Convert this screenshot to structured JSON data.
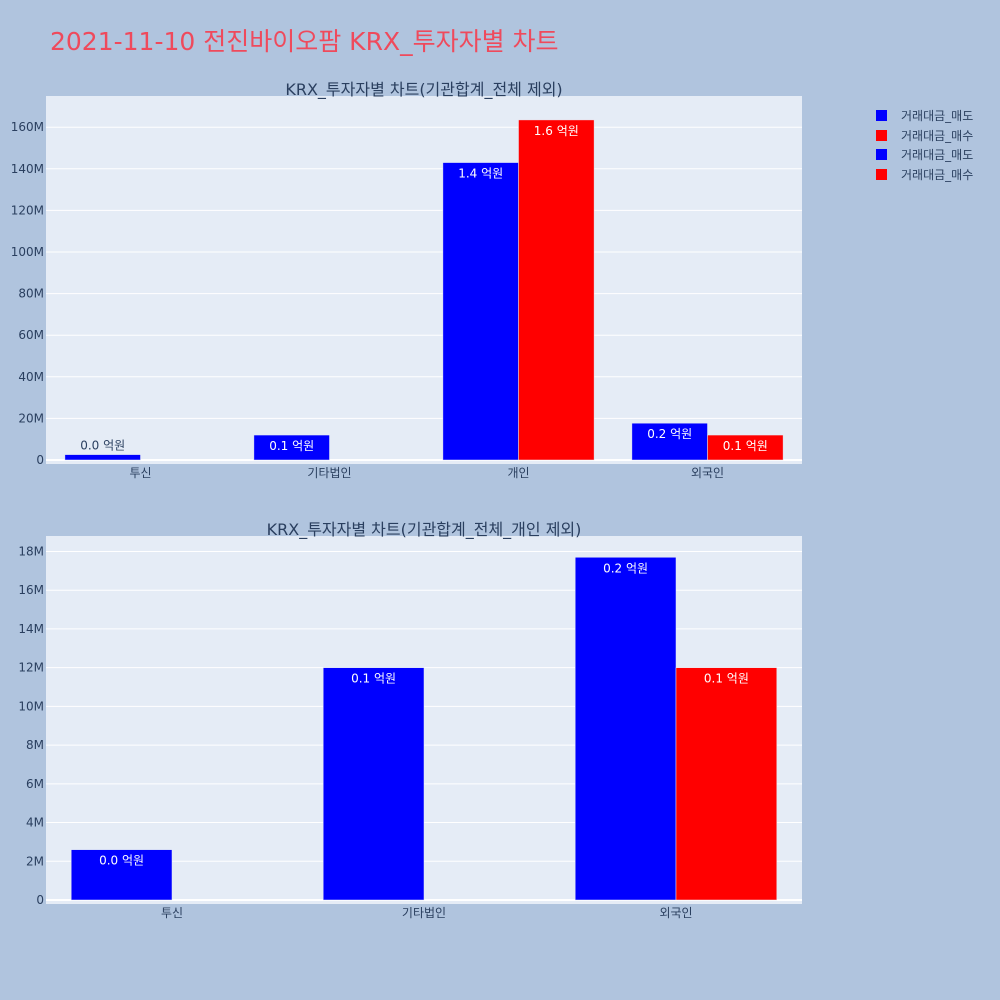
{
  "page_title": "2021-11-10 전진바이오팜 KRX_투자자별 차트",
  "colors": {
    "background": "#b0c4de",
    "plot_bg": "#e5ecf6",
    "grid": "#ffffff",
    "sell": "#0000ff",
    "buy": "#ff0000",
    "title": "#ef4a5c",
    "text": "#2a3f5f"
  },
  "legend": {
    "placement": "top-right",
    "items": [
      {
        "label": "거래대금_매도",
        "color": "#0000ff"
      },
      {
        "label": "거래대금_매수",
        "color": "#ff0000"
      },
      {
        "label": "거래대금_매도",
        "color": "#0000ff"
      },
      {
        "label": "거래대금_매수",
        "color": "#ff0000"
      }
    ]
  },
  "chart_data": [
    {
      "type": "bar",
      "title": "KRX_투자자별 차트(기관합계_전체 제외)",
      "categories": [
        "투신",
        "기타법인",
        "개인",
        "외국인"
      ],
      "series": [
        {
          "name": "거래대금_매도",
          "values": [
            2600000,
            12000000,
            143000000,
            17700000
          ],
          "labels": [
            "0.0 억원",
            "0.1 억원",
            "1.4 억원",
            "0.2 억원"
          ]
        },
        {
          "name": "거래대금_매수",
          "values": [
            0,
            0,
            163500000,
            12000000
          ],
          "labels": [
            "",
            "",
            "1.6 억원",
            "0.1 억원"
          ]
        }
      ],
      "ylim": [
        0,
        175000000
      ],
      "yticks": [
        0,
        20000000,
        40000000,
        60000000,
        80000000,
        100000000,
        120000000,
        140000000,
        160000000
      ],
      "ytick_labels": [
        "0",
        "20M",
        "40M",
        "60M",
        "80M",
        "100M",
        "120M",
        "140M",
        "160M"
      ],
      "grid": true,
      "xlabel": "",
      "ylabel": ""
    },
    {
      "type": "bar",
      "title": "KRX_투자자별 차트(기관합계_전체_개인 제외)",
      "categories": [
        "투신",
        "기타법인",
        "외국인"
      ],
      "series": [
        {
          "name": "거래대금_매도",
          "values": [
            2600000,
            12000000,
            17700000
          ],
          "labels": [
            "0.0 억원",
            "0.1 억원",
            "0.2 억원"
          ]
        },
        {
          "name": "거래대금_매수",
          "values": [
            0,
            0,
            12000000
          ],
          "labels": [
            "",
            "",
            "0.1 억원"
          ]
        }
      ],
      "ylim": [
        0,
        18800000
      ],
      "yticks": [
        0,
        2000000,
        4000000,
        6000000,
        8000000,
        10000000,
        12000000,
        14000000,
        16000000,
        18000000
      ],
      "ytick_labels": [
        "0",
        "2M",
        "4M",
        "6M",
        "8M",
        "10M",
        "12M",
        "14M",
        "16M",
        "18M"
      ],
      "grid": true,
      "xlabel": "",
      "ylabel": ""
    }
  ]
}
